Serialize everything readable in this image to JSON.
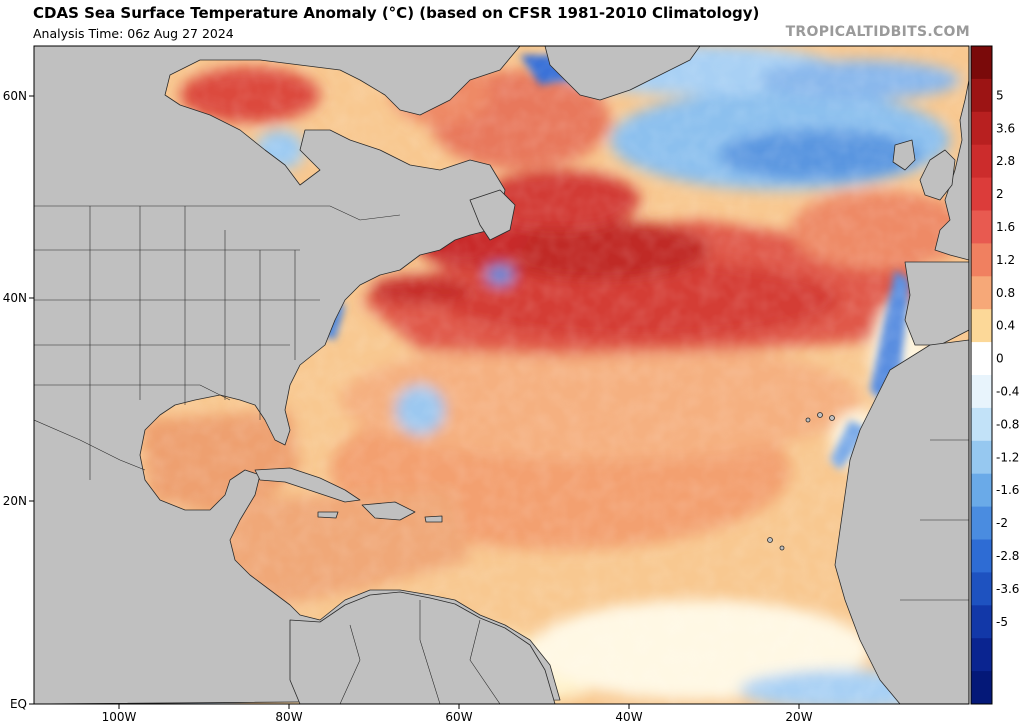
{
  "header": {
    "title": "CDAS Sea Surface Temperature Anomaly (°C) (based on CFSR 1981-2010 Climatology)",
    "subtitle": "Analysis Time: 06z Aug 27 2024",
    "watermark": "TROPICALTIDBITS.COM"
  },
  "axes": {
    "lat_ticks": [
      "60N",
      "40N",
      "20N",
      "EQ"
    ],
    "lon_ticks": [
      "100W",
      "80W",
      "60W",
      "40W",
      "20W"
    ]
  },
  "colorbar": {
    "labels": [
      "5",
      "3.6",
      "2.8",
      "2",
      "1.6",
      "1.2",
      "0.8",
      "0.4",
      "0",
      "-0.4",
      "-0.8",
      "-1.2",
      "-1.6",
      "-2",
      "-2.8",
      "-3.6",
      "-5"
    ],
    "colors": [
      "#7a0a0a",
      "#9c1414",
      "#b82020",
      "#cc2c2c",
      "#dc3c3a",
      "#e85a50",
      "#f08060",
      "#f6a878",
      "#fcd898",
      "#ffffff",
      "#e8f4fc",
      "#c2e2f8",
      "#96c8f0",
      "#6aaae8",
      "#4a8ce0",
      "#2e6cd4",
      "#1e52c0",
      "#1238a8",
      "#0a2490",
      "#041878"
    ]
  },
  "map": {
    "land_color": "#c0c0c0",
    "border_color": "#2a2a2a"
  }
}
